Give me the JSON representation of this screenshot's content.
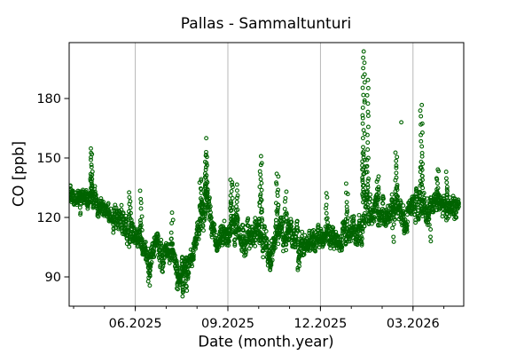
{
  "chart_data": {
    "type": "scatter",
    "title": "Pallas - Sammaltunturi",
    "xlabel": "Date (month.year)",
    "ylabel": "CO [ppb]",
    "y_ticks": [
      90,
      120,
      150,
      180
    ],
    "ylim": [
      75,
      208
    ],
    "x_major_ticks": [
      {
        "months_from_2025_04": 2,
        "label": "06.2025"
      },
      {
        "months_from_2025_04": 5,
        "label": "09.2025"
      },
      {
        "months_from_2025_04": 8,
        "label": "12.2025"
      },
      {
        "months_from_2025_04": 11,
        "label": "03.2026"
      }
    ],
    "x_minor_ticks_months": [
      0,
      1,
      2,
      3,
      4,
      5,
      6,
      7,
      8,
      9,
      10,
      11,
      12
    ],
    "xlim_months_from_2025_04": [
      -0.14,
      12.65
    ],
    "data_t_range": [
      -0.12,
      12.48
    ],
    "grid": "vertical-only",
    "legend": null,
    "marker": {
      "shape": "open-circle",
      "radius": 1.9,
      "stroke_width": 1.1,
      "color": "#006400"
    },
    "colors": {
      "marker": "#006400",
      "grid": "#b0b0b0",
      "axis": "#000000",
      "background": "#ffffff"
    },
    "envelope_center": [
      [
        -0.15,
        131
      ],
      [
        0.3,
        132
      ],
      [
        0.55,
        131
      ],
      [
        0.8,
        127
      ],
      [
        1.2,
        124
      ],
      [
        1.6,
        117
      ],
      [
        1.9,
        113
      ],
      [
        2.1,
        109
      ],
      [
        2.35,
        103
      ],
      [
        2.5,
        100
      ],
      [
        2.65,
        111
      ],
      [
        2.8,
        102
      ],
      [
        3.0,
        100
      ],
      [
        3.18,
        102
      ],
      [
        3.38,
        93
      ],
      [
        3.55,
        91
      ],
      [
        3.72,
        97
      ],
      [
        3.9,
        107
      ],
      [
        4.05,
        115
      ],
      [
        4.25,
        127
      ],
      [
        4.45,
        122
      ],
      [
        4.6,
        108
      ],
      [
        4.8,
        110
      ],
      [
        5.0,
        112
      ],
      [
        5.15,
        119
      ],
      [
        5.35,
        114
      ],
      [
        5.5,
        105
      ],
      [
        5.65,
        111
      ],
      [
        5.85,
        109
      ],
      [
        6.05,
        117
      ],
      [
        6.25,
        106
      ],
      [
        6.4,
        103
      ],
      [
        6.6,
        116
      ],
      [
        6.8,
        111
      ],
      [
        7.0,
        114
      ],
      [
        7.2,
        106
      ],
      [
        7.45,
        103
      ],
      [
        7.65,
        107
      ],
      [
        7.85,
        110
      ],
      [
        8.05,
        107
      ],
      [
        8.25,
        111
      ],
      [
        8.45,
        105
      ],
      [
        8.65,
        108
      ],
      [
        8.85,
        114
      ],
      [
        9.1,
        114
      ],
      [
        9.3,
        117
      ],
      [
        9.45,
        124
      ],
      [
        9.65,
        121
      ],
      [
        9.85,
        124
      ],
      [
        10.05,
        119
      ],
      [
        10.3,
        123
      ],
      [
        10.5,
        127
      ],
      [
        10.7,
        121
      ],
      [
        10.9,
        123
      ],
      [
        11.1,
        125
      ],
      [
        11.3,
        129
      ],
      [
        11.5,
        123
      ],
      [
        11.7,
        125
      ],
      [
        11.9,
        127
      ],
      [
        12.1,
        125
      ],
      [
        12.3,
        123
      ],
      [
        12.5,
        126
      ]
    ],
    "envelope_halfwidth": [
      [
        -0.15,
        5
      ],
      [
        0.5,
        6
      ],
      [
        1.0,
        6
      ],
      [
        1.6,
        7
      ],
      [
        2.2,
        8
      ],
      [
        2.6,
        8
      ],
      [
        3.0,
        7
      ],
      [
        3.5,
        6
      ],
      [
        3.9,
        7
      ],
      [
        4.25,
        10
      ],
      [
        4.6,
        7
      ],
      [
        5.15,
        9
      ],
      [
        5.6,
        8
      ],
      [
        6.05,
        10
      ],
      [
        6.5,
        8
      ],
      [
        7.0,
        8
      ],
      [
        7.5,
        7
      ],
      [
        8.0,
        6
      ],
      [
        8.5,
        7
      ],
      [
        9.0,
        7
      ],
      [
        9.45,
        8
      ],
      [
        10.0,
        8
      ],
      [
        10.5,
        8
      ],
      [
        11.0,
        8
      ],
      [
        11.3,
        9
      ],
      [
        11.7,
        7
      ],
      [
        12.2,
        7
      ],
      [
        12.5,
        6
      ]
    ],
    "spikes_up": [
      {
        "t": 0.58,
        "top": 154,
        "n": 14
      },
      {
        "t": 1.82,
        "top": 133,
        "n": 7
      },
      {
        "t": 2.18,
        "top": 133,
        "n": 7
      },
      {
        "t": 3.2,
        "top": 122,
        "n": 6
      },
      {
        "t": 4.12,
        "top": 140,
        "n": 10
      },
      {
        "t": 4.3,
        "top": 153,
        "n": 20
      },
      {
        "t": 5.12,
        "top": 140,
        "n": 11
      },
      {
        "t": 5.3,
        "top": 137,
        "n": 7
      },
      {
        "t": 6.07,
        "top": 150,
        "n": 14
      },
      {
        "t": 6.6,
        "top": 142,
        "n": 11
      },
      {
        "t": 6.88,
        "top": 132,
        "n": 7
      },
      {
        "t": 8.2,
        "top": 132,
        "n": 7
      },
      {
        "t": 8.85,
        "top": 136,
        "n": 7
      },
      {
        "t": 9.4,
        "top": 203,
        "n": 30
      },
      {
        "t": 9.52,
        "top": 190,
        "n": 16
      },
      {
        "t": 9.85,
        "top": 140,
        "n": 9
      },
      {
        "t": 10.45,
        "top": 152,
        "n": 11
      },
      {
        "t": 11.27,
        "top": 176,
        "n": 17
      },
      {
        "t": 11.8,
        "top": 145,
        "n": 7
      },
      {
        "t": 12.08,
        "top": 142,
        "n": 7
      }
    ],
    "spikes_down": [
      {
        "t": 0.22,
        "bottom": 121,
        "n": 4
      },
      {
        "t": 2.45,
        "bottom": 86,
        "n": 7
      },
      {
        "t": 3.38,
        "bottom": 84,
        "n": 7
      },
      {
        "t": 3.55,
        "bottom": 81,
        "n": 9
      },
      {
        "t": 3.64,
        "bottom": 83,
        "n": 5
      },
      {
        "t": 6.38,
        "bottom": 93,
        "n": 7
      },
      {
        "t": 7.3,
        "bottom": 94,
        "n": 7
      },
      {
        "t": 10.35,
        "bottom": 108,
        "n": 4
      },
      {
        "t": 11.55,
        "bottom": 108,
        "n": 4
      }
    ],
    "outlier_points": [
      [
        4.3,
        160
      ],
      [
        10.62,
        168
      ]
    ]
  }
}
